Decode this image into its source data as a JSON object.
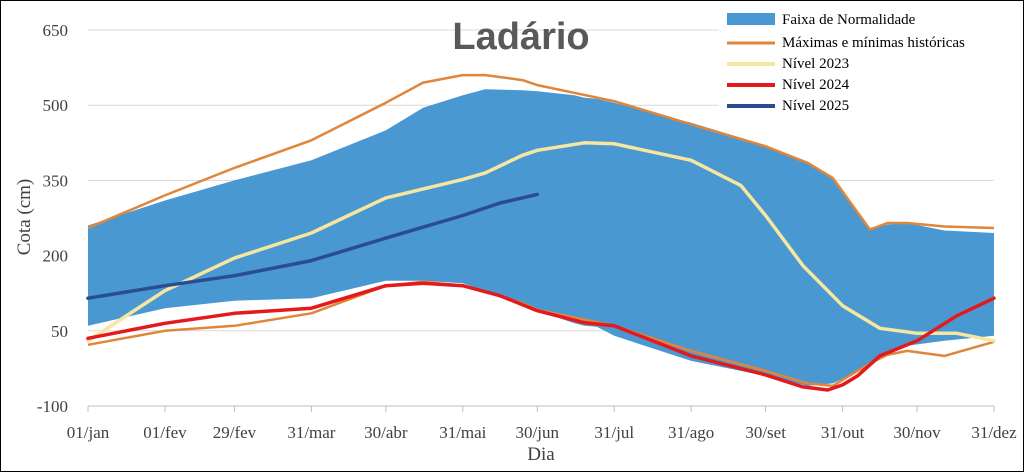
{
  "chart_data": {
    "type": "area",
    "title": "Ladário",
    "xlabel": "Dia",
    "ylabel": "Cota (cm)",
    "ylim": [
      -100,
      650
    ],
    "yticks": [
      -100,
      50,
      200,
      350,
      500,
      650
    ],
    "xlim": [
      0,
      365
    ],
    "xticks": [
      {
        "day": 0,
        "label": "01/jan"
      },
      {
        "day": 31,
        "label": "01/fev"
      },
      {
        "day": 59,
        "label": "29/fev"
      },
      {
        "day": 90,
        "label": "31/mar"
      },
      {
        "day": 120,
        "label": "30/abr"
      },
      {
        "day": 151,
        "label": "31/mai"
      },
      {
        "day": 181,
        "label": "30/jun"
      },
      {
        "day": 212,
        "label": "31/jul"
      },
      {
        "day": 243,
        "label": "31/ago"
      },
      {
        "day": 273,
        "label": "30/set"
      },
      {
        "day": 304,
        "label": "31/out"
      },
      {
        "day": 334,
        "label": "30/nov"
      },
      {
        "day": 365,
        "label": "31/dez"
      }
    ],
    "grid": "horizontal",
    "legend_position": "top-right",
    "series": [
      {
        "name": "Faixa de Normalidade",
        "kind": "band",
        "color": "#4a98d2",
        "x": [
          0,
          31,
          59,
          90,
          120,
          135,
          151,
          160,
          175,
          181,
          196,
          200,
          205,
          212,
          243,
          273,
          290,
          300,
          315,
          322,
          330,
          345,
          365
        ],
        "upper": [
          260,
          310,
          350,
          390,
          450,
          495,
          520,
          532,
          530,
          528,
          520,
          515,
          513,
          505,
          465,
          420,
          385,
          355,
          255,
          262,
          265,
          250,
          245
        ],
        "lower": [
          60,
          95,
          110,
          115,
          150,
          150,
          145,
          130,
          100,
          90,
          65,
          60,
          58,
          40,
          -10,
          -40,
          -60,
          -55,
          -20,
          10,
          20,
          30,
          40
        ]
      },
      {
        "name": "Máximas e mínimas históricas",
        "kind": "envelope",
        "color": "#e0863a",
        "x": [
          0,
          31,
          59,
          90,
          120,
          135,
          151,
          160,
          175,
          181,
          212,
          243,
          273,
          290,
          300,
          315,
          322,
          330,
          345,
          365
        ],
        "max": [
          255,
          320,
          375,
          430,
          505,
          545,
          560,
          560,
          550,
          540,
          508,
          462,
          418,
          385,
          355,
          252,
          265,
          265,
          258,
          255
        ],
        "min": [
          22,
          50,
          60,
          85,
          140,
          148,
          140,
          128,
          105,
          92,
          60,
          10,
          -30,
          -55,
          -60,
          -15,
          2,
          10,
          0,
          28
        ]
      },
      {
        "name": "Nível 2023",
        "kind": "line",
        "color": "#f7e6a0",
        "x": [
          0,
          31,
          59,
          90,
          120,
          151,
          160,
          175,
          181,
          200,
          212,
          243,
          263,
          273,
          288,
          304,
          319,
          334,
          350,
          365
        ],
        "y": [
          30,
          130,
          195,
          245,
          315,
          352,
          365,
          400,
          410,
          425,
          423,
          390,
          340,
          280,
          180,
          100,
          55,
          45,
          45,
          30
        ]
      },
      {
        "name": "Nível 2024",
        "kind": "line",
        "color": "#e4191c",
        "x": [
          0,
          31,
          59,
          90,
          120,
          135,
          151,
          166,
          181,
          200,
          212,
          243,
          273,
          288,
          298,
          304,
          310,
          319,
          334,
          350,
          365
        ],
        "y": [
          35,
          65,
          85,
          95,
          140,
          145,
          140,
          120,
          90,
          66,
          60,
          0,
          -38,
          -62,
          -68,
          -58,
          -40,
          0,
          30,
          80,
          115
        ]
      },
      {
        "name": "Nível 2025",
        "kind": "line",
        "color": "#2a4d8f",
        "x": [
          0,
          31,
          59,
          90,
          120,
          151,
          166,
          181
        ],
        "y": [
          115,
          140,
          160,
          190,
          235,
          280,
          305,
          322
        ]
      }
    ]
  }
}
